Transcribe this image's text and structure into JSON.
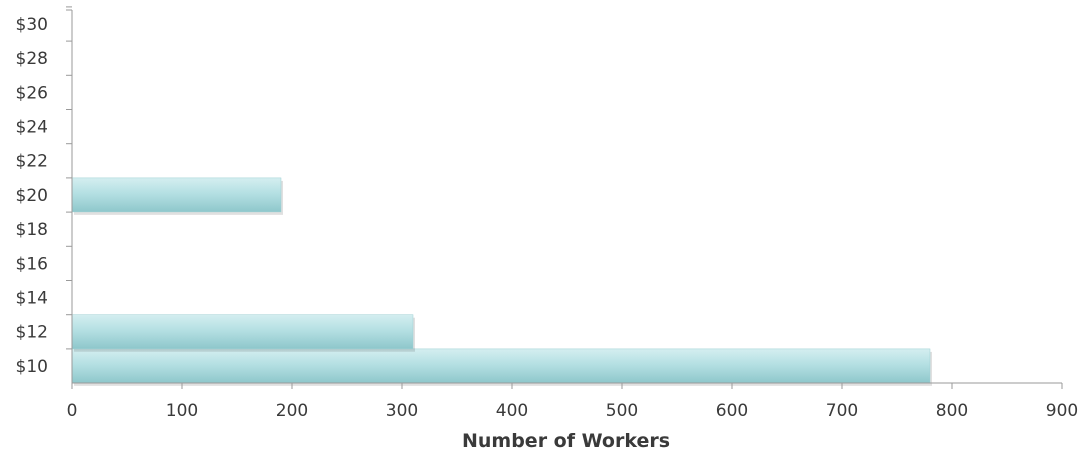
{
  "chart_data": {
    "type": "bar",
    "orientation": "horizontal",
    "title": "",
    "xlabel": "Number of Workers",
    "ylabel": "",
    "xlim": [
      0,
      900
    ],
    "x_ticks": [
      0,
      100,
      200,
      300,
      400,
      500,
      600,
      700,
      800,
      900
    ],
    "x_tick_labels": [
      "0",
      "100",
      "200",
      "300",
      "400",
      "500",
      "600",
      "700",
      "800",
      "900"
    ],
    "categories": [
      "$10",
      "$12",
      "$14",
      "$16",
      "$18",
      "$20",
      "$22",
      "$24",
      "$26",
      "$28",
      "$30"
    ],
    "category_values": [
      10,
      12,
      14,
      16,
      18,
      20,
      22,
      24,
      26,
      28,
      30
    ],
    "bars": [
      {
        "y": 10,
        "value": 780
      },
      {
        "y": 12,
        "value": 310
      },
      {
        "y": 20,
        "value": 190
      }
    ],
    "grid": false,
    "legend": "none",
    "bar_color": "#a9d8dc"
  }
}
